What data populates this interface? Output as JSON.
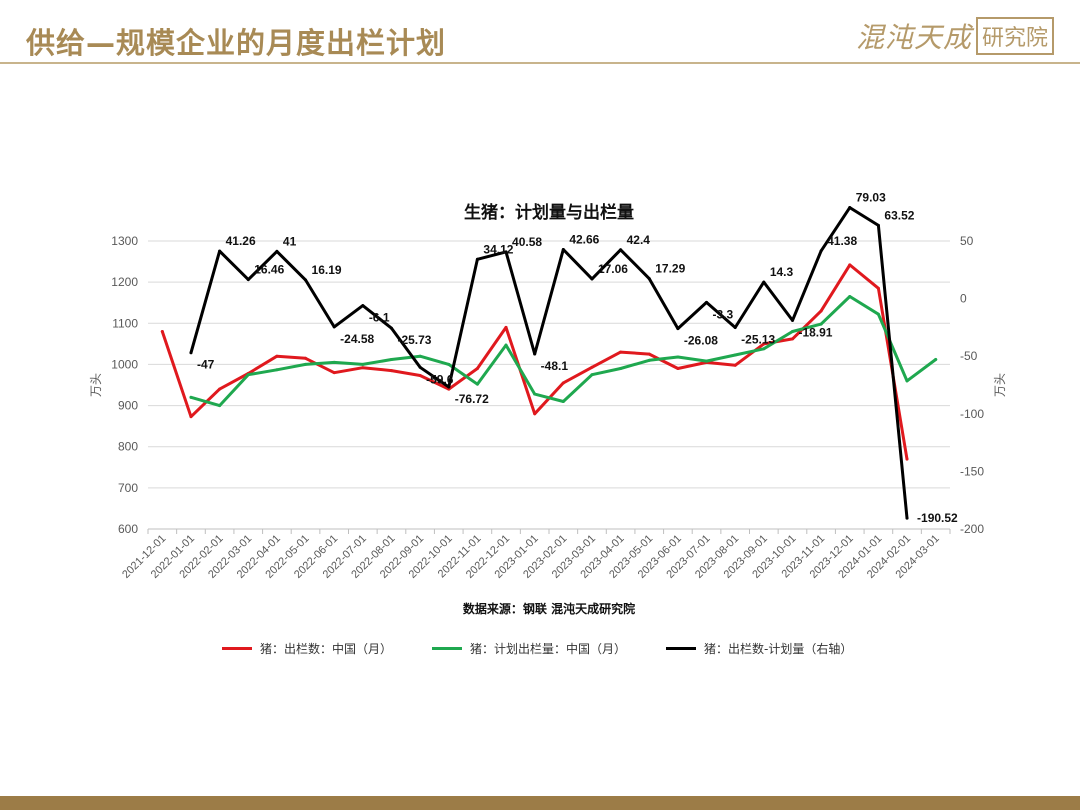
{
  "header": {
    "title": "供给—规模企业的月度出栏计划",
    "logo_text": "混沌天成",
    "logo_box": "研究院"
  },
  "source_note": "数据来源：钢联 混沌天成研究院",
  "colors": {
    "red": "#e0191e",
    "green": "#1fa84f",
    "black": "#000000",
    "gold": "#a88a55"
  },
  "chart_data": {
    "type": "line",
    "title": "生猪：计划量与出栏量",
    "ylabel": "万头",
    "y2label": "万头",
    "ylim": [
      600,
      1300
    ],
    "y2lim": [
      -200,
      50
    ],
    "y_ticks": [
      600,
      700,
      800,
      900,
      1000,
      1100,
      1200,
      1300
    ],
    "y2_ticks": [
      -200,
      -150,
      -100,
      -50,
      0,
      50
    ],
    "categories": [
      "2021-12-01",
      "2022-01-01",
      "2022-02-01",
      "2022-03-01",
      "2022-04-01",
      "2022-05-01",
      "2022-06-01",
      "2022-07-01",
      "2022-08-01",
      "2022-09-01",
      "2022-10-01",
      "2022-11-01",
      "2022-12-01",
      "2023-01-01",
      "2023-02-01",
      "2023-03-01",
      "2023-04-01",
      "2023-05-01",
      "2023-06-01",
      "2023-07-01",
      "2023-08-01",
      "2023-09-01",
      "2023-10-01",
      "2023-11-01",
      "2023-12-01",
      "2024-01-01",
      "2024-02-01",
      "2024-03-01"
    ],
    "grid": true,
    "legend_position": "bottom",
    "series": [
      {
        "name": "猪：出栏数：中国（月）",
        "axis": "left",
        "color": "#e0191e",
        "values": [
          1080,
          873,
          940,
          978,
          1020,
          1015,
          980,
          992,
          985,
          973,
          940,
          990,
          1090,
          880,
          955,
          993,
          1030,
          1025,
          990,
          1005,
          998,
          1050,
          1062,
          1130,
          1242,
          1185,
          770,
          null
        ]
      },
      {
        "name": "猪：计划出栏量：中国（月）",
        "axis": "left",
        "color": "#1fa84f",
        "values": [
          null,
          920,
          900,
          975,
          987,
          1000,
          1005,
          1000,
          1012,
          1020,
          1000,
          952,
          1047,
          928,
          910,
          975,
          990,
          1010,
          1018,
          1008,
          1023,
          1038,
          1080,
          1098,
          1165,
          1122,
          960,
          1012
        ]
      },
      {
        "name": "猪：出栏数-计划量（右轴）",
        "axis": "right",
        "color": "#000000",
        "values": [
          null,
          -47,
          41.26,
          16.46,
          41,
          16.19,
          -24.58,
          -6.1,
          -25.73,
          -59.6,
          -76.72,
          34.12,
          40.58,
          -48.1,
          42.66,
          17.06,
          42.4,
          17.29,
          -26.08,
          -3.3,
          -25.13,
          14.3,
          -18.91,
          41.38,
          79.03,
          63.52,
          -190.52,
          null
        ]
      }
    ],
    "data_labels": [
      {
        "index": 1,
        "text": "-47"
      },
      {
        "index": 2,
        "text": "41.26"
      },
      {
        "index": 3,
        "text": "16.46"
      },
      {
        "index": 4,
        "text": "41"
      },
      {
        "index": 5,
        "text": "16.19"
      },
      {
        "index": 6,
        "text": "-24.58"
      },
      {
        "index": 7,
        "text": "-6.1"
      },
      {
        "index": 8,
        "text": "-25.73"
      },
      {
        "index": 9,
        "text": "-59.6"
      },
      {
        "index": 10,
        "text": "-76.72"
      },
      {
        "index": 11,
        "text": "34.12"
      },
      {
        "index": 12,
        "text": "40.58"
      },
      {
        "index": 13,
        "text": "-48.1"
      },
      {
        "index": 14,
        "text": "42.66"
      },
      {
        "index": 15,
        "text": "17.06"
      },
      {
        "index": 16,
        "text": "42.4"
      },
      {
        "index": 17,
        "text": "17.29"
      },
      {
        "index": 18,
        "text": "-26.08"
      },
      {
        "index": 19,
        "text": "-3.3"
      },
      {
        "index": 20,
        "text": "-25.13"
      },
      {
        "index": 21,
        "text": "14.3"
      },
      {
        "index": 22,
        "text": "-18.91"
      },
      {
        "index": 23,
        "text": "41.38"
      },
      {
        "index": 24,
        "text": "79.03"
      },
      {
        "index": 25,
        "text": "63.52"
      },
      {
        "index": 26,
        "text": "-190.52"
      }
    ]
  }
}
